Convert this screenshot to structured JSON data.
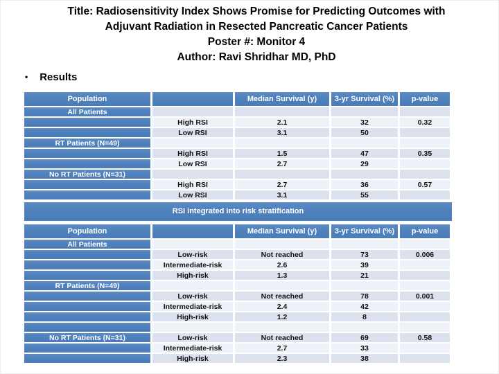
{
  "slide": {
    "title_lines": [
      "Title: Radiosensitivity Index Shows Promise for Predicting Outcomes with",
      "Adjuvant Radiation in Resected Pancreatic Cancer Patients",
      "Poster #: Monitor 4",
      "Author: Ravi Shridhar MD, PhD"
    ],
    "bullet_marker": "•",
    "bullet": "Results",
    "banner": "RSI integrated into risk stratification"
  },
  "colors": {
    "accent_blue": "#4f81bd",
    "band_dark": "#dbe2ee",
    "band_light": "#eef1f7",
    "header_text": "#ffffff",
    "body_text": "#111111"
  },
  "tables": [
    {
      "title": "RSI outcomes",
      "columns": [
        "Population",
        "",
        "Median Survival (y)",
        "3-yr Survival (%)",
        "p-value"
      ],
      "rows": [
        {
          "cells": [
            "All Patients",
            "",
            "",
            "",
            ""
          ],
          "band": "dark"
        },
        {
          "cells": [
            "",
            "High RSI",
            "2.1",
            "32",
            "0.32"
          ],
          "band": "light"
        },
        {
          "cells": [
            "",
            "Low RSI",
            "3.1",
            "50",
            ""
          ],
          "band": "dark"
        },
        {
          "cells": [
            "RT Patients (N=49)",
            "",
            "",
            "",
            ""
          ],
          "band": "light"
        },
        {
          "cells": [
            "",
            "High RSI",
            "1.5",
            "47",
            "0.35"
          ],
          "band": "dark"
        },
        {
          "cells": [
            "",
            "Low RSI",
            "2.7",
            "29",
            ""
          ],
          "band": "light"
        },
        {
          "cells": [
            "No RT Patients (N=31)",
            "",
            "",
            "",
            ""
          ],
          "band": "dark"
        },
        {
          "cells": [
            "",
            "High RSI",
            "2.7",
            "36",
            "0.57"
          ],
          "band": "light"
        },
        {
          "cells": [
            "",
            "Low RSI",
            "3.1",
            "55",
            ""
          ],
          "band": "dark"
        }
      ]
    },
    {
      "title": "RSI integrated into risk stratification outcomes",
      "columns": [
        "Population",
        "",
        "Median Survival (y)",
        "3-yr Survival (%)",
        "p-value"
      ],
      "rows": [
        {
          "cells": [
            "All Patients",
            "",
            "",
            "",
            ""
          ],
          "band": "light"
        },
        {
          "cells": [
            "",
            "Low-risk",
            "Not reached",
            "73",
            "0.006"
          ],
          "band": "dark"
        },
        {
          "cells": [
            "",
            "Intermediate-risk",
            "2.6",
            "39",
            ""
          ],
          "band": "light"
        },
        {
          "cells": [
            "",
            "High-risk",
            "1.3",
            "21",
            ""
          ],
          "band": "dark"
        },
        {
          "cells": [
            "RT Patients (N=49)",
            "",
            "",
            "",
            ""
          ],
          "band": "light"
        },
        {
          "cells": [
            "",
            "Low-risk",
            "Not reached",
            "78",
            "0.001"
          ],
          "band": "dark"
        },
        {
          "cells": [
            "",
            "Intermediate-risk",
            "2.4",
            "42",
            ""
          ],
          "band": "light"
        },
        {
          "cells": [
            "",
            "High-risk",
            "1.2",
            "8",
            ""
          ],
          "band": "dark"
        },
        {
          "cells": [
            "",
            "",
            "",
            "",
            ""
          ],
          "band": "light"
        },
        {
          "cells": [
            "No RT Patients (N=31)",
            "Low-risk",
            "Not reached",
            "69",
            "0.58"
          ],
          "band": "dark"
        },
        {
          "cells": [
            "",
            "Intermediate-risk",
            "2.7",
            "33",
            ""
          ],
          "band": "light"
        },
        {
          "cells": [
            "",
            "High-risk",
            "2.3",
            "38",
            ""
          ],
          "band": "dark"
        }
      ]
    }
  ]
}
